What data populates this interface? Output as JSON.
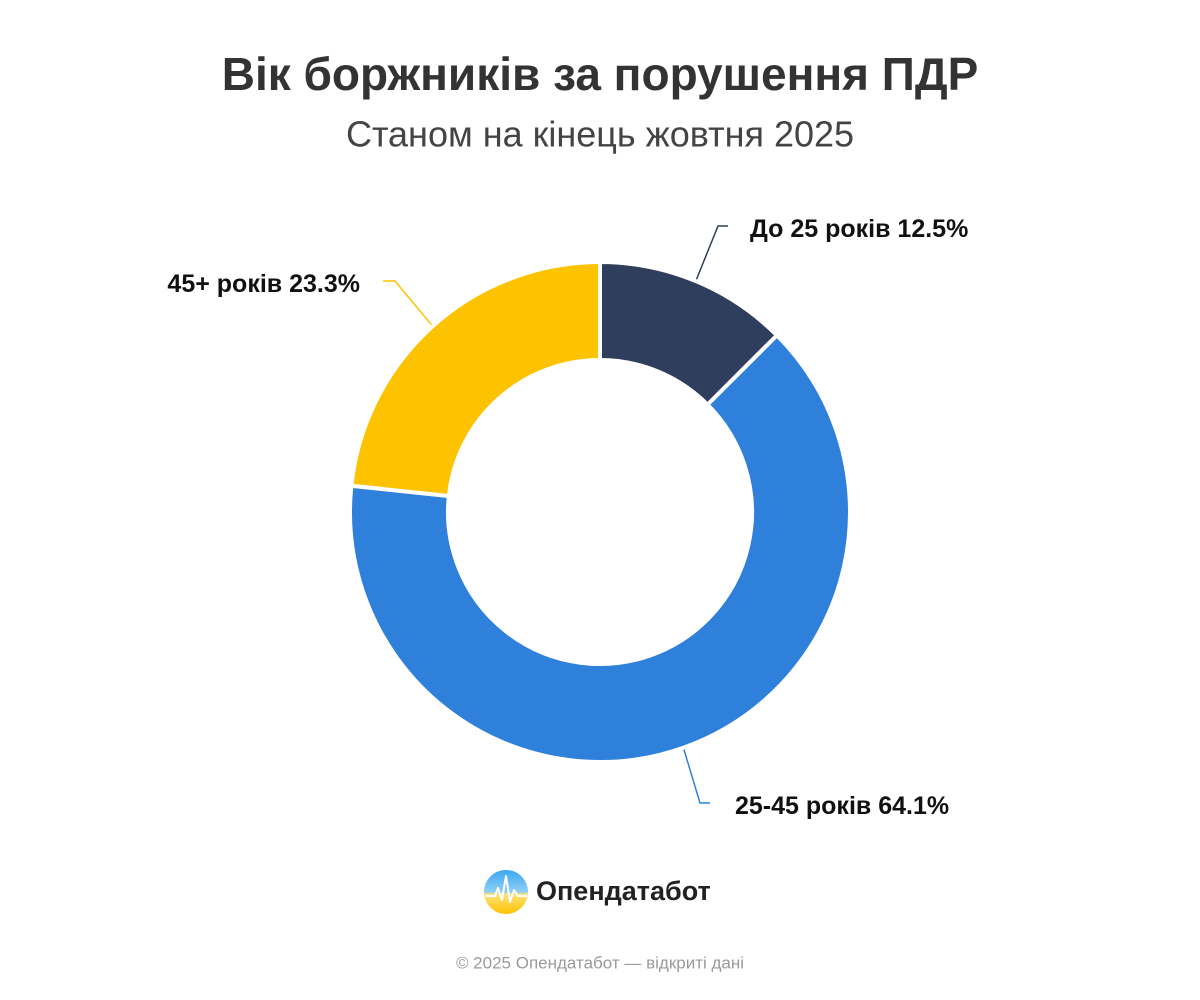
{
  "chart_data": {
    "type": "donut",
    "title": "Вік боржників за порушення ПДР",
    "subtitle": "Станом на кінець жовтня 2025",
    "categories": [
      "До 25 років",
      "25-45 років",
      "45+ років"
    ],
    "values": [
      12.5,
      64.1,
      23.3
    ],
    "value_labels": [
      "12.5%",
      "64.1%",
      "23.3%"
    ],
    "colors": [
      "#2f3e5c",
      "#2f80db",
      "#fdc300"
    ]
  },
  "logo_text": "Опендатабот",
  "footer": "© 2025 Опендатабот — відкриті дані"
}
